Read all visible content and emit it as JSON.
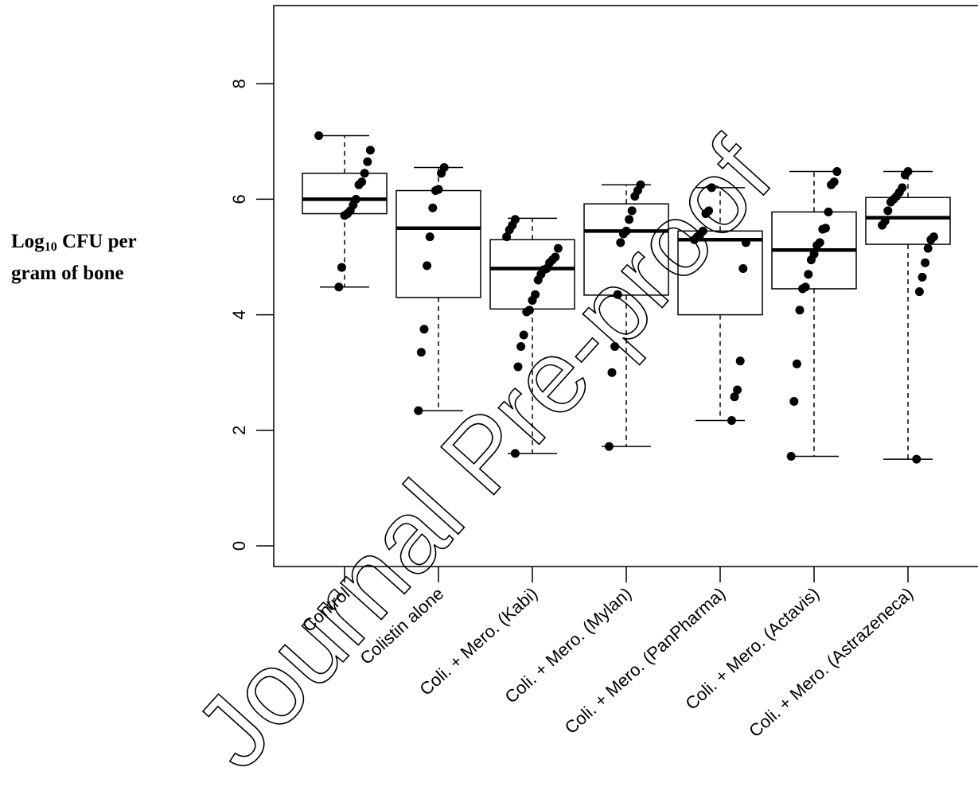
{
  "chart_data": {
    "type": "box",
    "ylabel": {
      "prefix": "Log",
      "subscript": "10",
      "line1_rest": " CFU per",
      "line2": "gram of bone"
    },
    "ylim": [
      0,
      9.3
    ],
    "y_ticks": [
      0,
      2,
      4,
      6,
      8
    ],
    "grid": false,
    "categories": [
      "Control",
      "Colistin alone",
      "Coli. + Mero. (Kabi)",
      "Coli. + Mero. (Mylan)",
      "Coli. + Mero. (PanPharma)",
      "Coli. + Mero. (Actavis)",
      "Coli. + Mero. (Astrazeneca)"
    ],
    "boxes": [
      {
        "min": 4.48,
        "q1": 5.75,
        "median": 6.0,
        "q3": 6.45,
        "max": 7.1
      },
      {
        "min": 2.34,
        "q1": 4.3,
        "median": 5.5,
        "q3": 6.15,
        "max": 6.55
      },
      {
        "min": 1.6,
        "q1": 4.1,
        "median": 4.8,
        "q3": 5.3,
        "max": 5.67
      },
      {
        "min": 1.72,
        "q1": 4.34,
        "median": 5.45,
        "q3": 5.92,
        "max": 6.25
      },
      {
        "min": 2.17,
        "q1": 4.0,
        "median": 5.3,
        "q3": 5.45,
        "max": 6.2
      },
      {
        "min": 1.55,
        "q1": 4.45,
        "median": 5.12,
        "q3": 5.78,
        "max": 6.48
      },
      {
        "min": 1.5,
        "q1": 5.22,
        "median": 5.68,
        "q3": 6.03,
        "max": 6.48
      }
    ],
    "points": [
      [
        7.1,
        6.85,
        6.65,
        6.45,
        6.3,
        6.25,
        6.0,
        5.9,
        5.8,
        5.75,
        5.72,
        4.82,
        4.48
      ],
      [
        6.55,
        6.45,
        6.17,
        6.15,
        5.85,
        5.35,
        4.85,
        3.75,
        3.35,
        2.34
      ],
      [
        5.65,
        5.55,
        5.47,
        5.35,
        5.15,
        5.0,
        4.95,
        4.9,
        4.8,
        4.78,
        4.7,
        4.6,
        4.35,
        4.25,
        4.08,
        4.05,
        3.65,
        3.45,
        3.1,
        1.6
      ],
      [
        6.25,
        6.15,
        6.05,
        5.8,
        5.65,
        5.45,
        5.4,
        5.25,
        4.35,
        3.45,
        3.0,
        1.72
      ],
      [
        6.2,
        5.8,
        5.75,
        5.45,
        5.4,
        5.35,
        5.3,
        5.25,
        4.8,
        3.2,
        2.7,
        2.58,
        2.17
      ],
      [
        6.48,
        6.3,
        6.25,
        5.78,
        5.5,
        5.48,
        5.25,
        5.2,
        5.05,
        4.95,
        4.7,
        4.48,
        4.45,
        4.08,
        3.15,
        2.5,
        1.55
      ],
      [
        6.48,
        6.42,
        6.2,
        6.12,
        6.05,
        6.0,
        5.95,
        5.8,
        5.62,
        5.55,
        5.35,
        5.3,
        5.15,
        4.9,
        4.65,
        4.4,
        1.5
      ]
    ]
  },
  "watermark": "Journal Pre-proof"
}
